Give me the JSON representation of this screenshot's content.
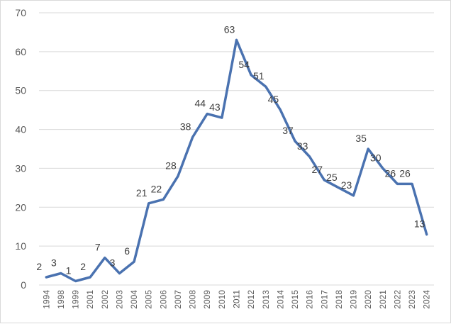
{
  "chart_data": {
    "type": "line",
    "categories": [
      "1994",
      "1998",
      "1999",
      "2001",
      "2002",
      "2003",
      "2004",
      "2005",
      "2006",
      "2007",
      "2008",
      "2009",
      "2010",
      "2011",
      "2012",
      "2013",
      "2014",
      "2015",
      "2016",
      "2017",
      "2018",
      "2019",
      "2020",
      "2021",
      "2022",
      "2023",
      "2024"
    ],
    "series": [
      {
        "values": [
          2,
          3,
          1,
          2,
          7,
          3,
          6,
          21,
          22,
          28,
          38,
          44,
          43,
          63,
          54,
          51,
          45,
          37,
          33,
          27,
          25,
          23,
          35,
          30,
          26,
          26,
          13
        ],
        "color": "#4a72b0"
      }
    ],
    "ylim": [
      0,
      70
    ],
    "yticks": [
      0,
      10,
      20,
      30,
      40,
      50,
      60,
      70
    ],
    "grid": true,
    "data_labels": true,
    "legend": "none",
    "title": "",
    "xlabel": "",
    "ylabel": ""
  }
}
